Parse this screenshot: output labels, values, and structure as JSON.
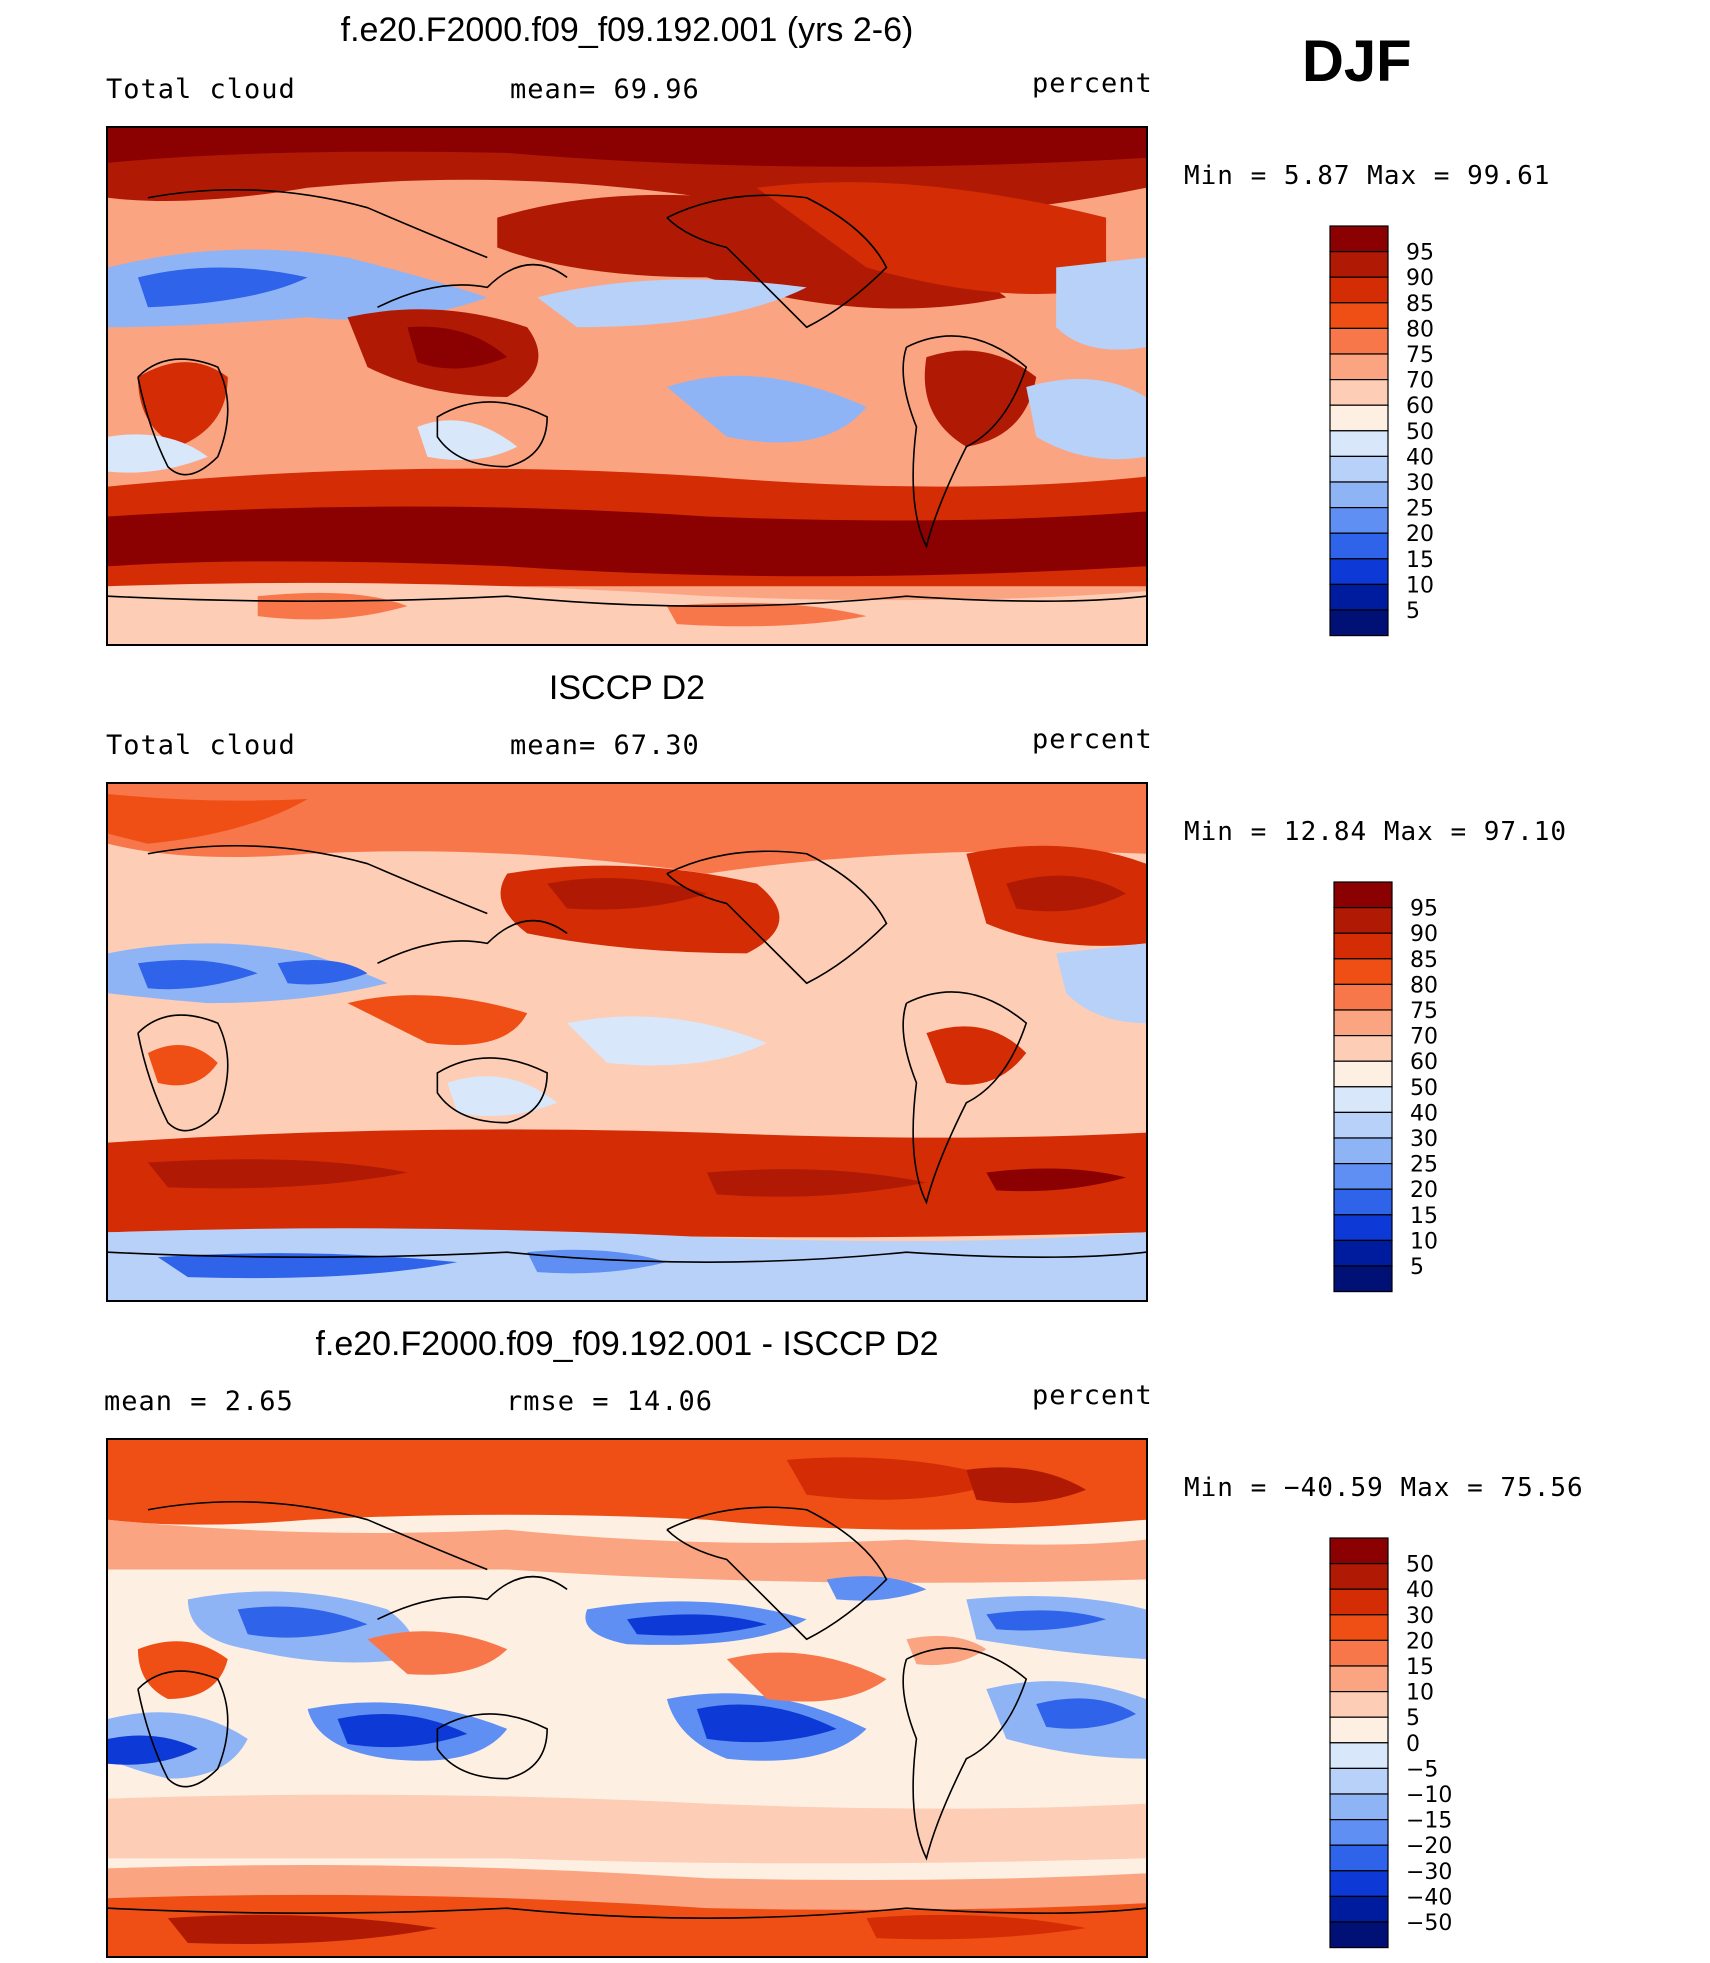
{
  "season": "DJF",
  "panels": [
    {
      "id": "model",
      "title": "f.e20.F2000.f09_f09.192.001 (yrs 2-6)",
      "left_label": "Total cloud",
      "center_label": "mean=   69.96",
      "right_label": "percent",
      "min_max": "Min =    5.87 Max =   99.61",
      "colorbar": {
        "labels": [
          "95",
          "90",
          "85",
          "80",
          "75",
          "70",
          "60",
          "50",
          "40",
          "30",
          "25",
          "20",
          "15",
          "10",
          "5"
        ],
        "colors": [
          "#8b0000",
          "#b01a05",
          "#d42c04",
          "#ef4f15",
          "#f7774a",
          "#fba482",
          "#fdcdb6",
          "#fdf0e3",
          "#d8e8fa",
          "#b7d1f9",
          "#8fb4f6",
          "#5f8ff2",
          "#2f63ea",
          "#0d3ad6",
          "#001c9e",
          "#001075"
        ]
      }
    },
    {
      "id": "obs",
      "title": "ISCCP D2",
      "left_label": "Total cloud",
      "center_label": "mean=   67.30",
      "right_label": "percent",
      "min_max": "Min =   12.84 Max =   97.10",
      "colorbar": {
        "labels": [
          "95",
          "90",
          "85",
          "80",
          "75",
          "70",
          "60",
          "50",
          "40",
          "30",
          "25",
          "20",
          "15",
          "10",
          "5"
        ],
        "colors": [
          "#8b0000",
          "#b01a05",
          "#d42c04",
          "#ef4f15",
          "#f7774a",
          "#fba482",
          "#fdcdb6",
          "#fdf0e3",
          "#d8e8fa",
          "#b7d1f9",
          "#8fb4f6",
          "#5f8ff2",
          "#2f63ea",
          "#0d3ad6",
          "#001c9e",
          "#001075"
        ]
      }
    },
    {
      "id": "diff",
      "title": "f.e20.F2000.f09_f09.192.001 - ISCCP D2",
      "left_label": "mean =     2.65",
      "center_label": "rmse =    14.06",
      "right_label": "percent",
      "min_max": "Min = −40.59 Max =   75.56",
      "colorbar": {
        "labels": [
          "50",
          "40",
          "30",
          "20",
          "15",
          "10",
          "5",
          "0",
          "−5",
          "−10",
          "−15",
          "−20",
          "−30",
          "−40",
          "−50"
        ],
        "colors": [
          "#8b0000",
          "#b01a05",
          "#d42c04",
          "#ef4f15",
          "#f7774a",
          "#fba482",
          "#fdcdb6",
          "#fdf0e3",
          "#d8e8fa",
          "#b7d1f9",
          "#8fb4f6",
          "#5f8ff2",
          "#2f63ea",
          "#0d3ad6",
          "#001c9e",
          "#001075"
        ]
      }
    }
  ]
}
